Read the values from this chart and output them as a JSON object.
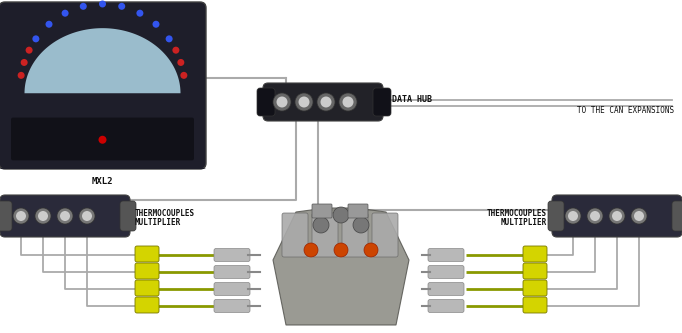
{
  "bg_color": "#ffffff",
  "wire_color": "#aaaaaa",
  "tc_wire_color": "#8a9900",
  "device_dark": "#1e1e2a",
  "device_mid": "#2a2a3a",
  "hub_color": "#222228",
  "font_color": "#333333",
  "font_color_dark": "#111111",
  "label_mxl2": "MXL2",
  "label_datahub": "DATA HUB",
  "label_can": "TO THE CAN EXPANSIONS",
  "label_tc_mult_1": "THERMOCOUPLES",
  "label_tc_mult_2": "MULTIPLIER",
  "connector_yellow": "#d4d400",
  "screen_blue": "#9abccc",
  "led_blue": "#3355ee",
  "led_red": "#cc2222",
  "probe_gray": "#b8b8b8",
  "probe_dark": "#888888"
}
